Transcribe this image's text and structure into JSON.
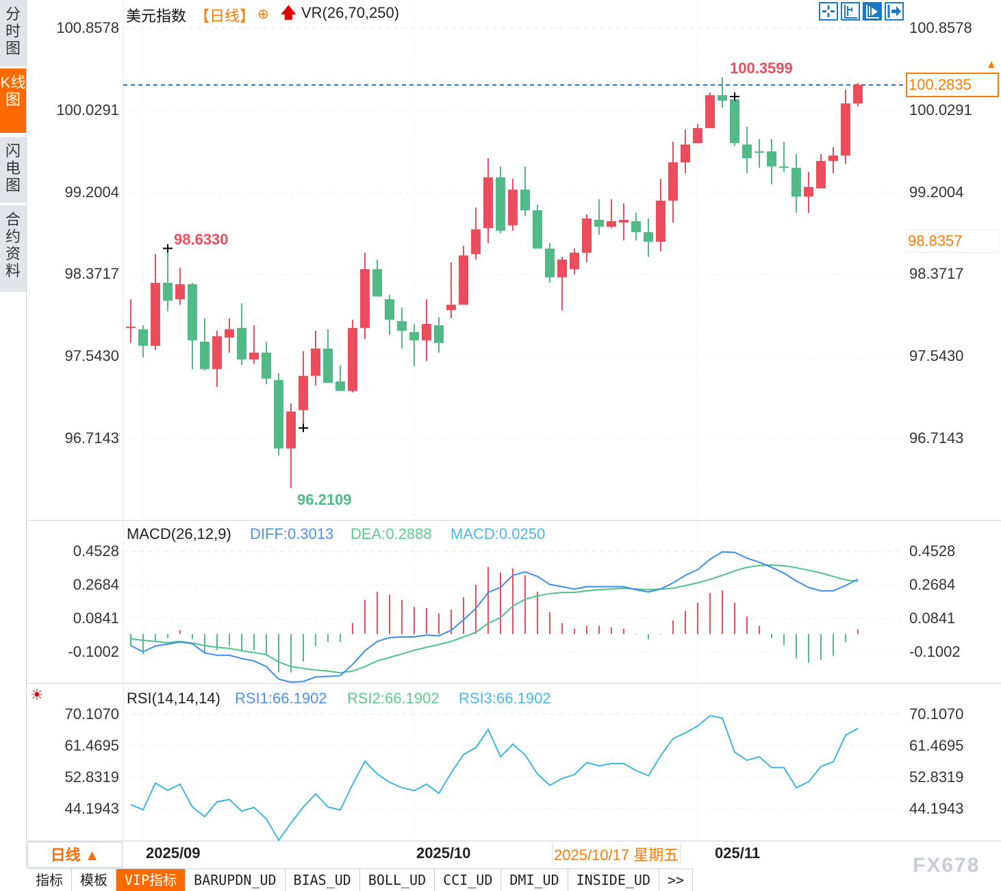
{
  "sidebar": {
    "items": [
      {
        "label": "分时图",
        "active": false
      },
      {
        "label": "K线图",
        "active": true
      },
      {
        "label": "闪电图",
        "active": false
      },
      {
        "label": "合约资料",
        "active": false
      }
    ]
  },
  "header": {
    "symbol": "美元指数",
    "period": "【日线】",
    "indicator": "VR(26,70,250)",
    "icons": [
      "crosshair-icon",
      "range-icon",
      "chart-play-icon",
      "move-right-icon"
    ]
  },
  "colors": {
    "up": "#eb4d5c",
    "down": "#52ba87",
    "accent": "#ff6a00",
    "diff": "#3a8ef0",
    "dea": "#4cc38a",
    "rsi": "#3bb4e6",
    "last_price_line": "#1a78f0"
  },
  "main": {
    "last_price": "100.2835",
    "side_label": "98.8357",
    "high_label": "100.3599",
    "low_label": "96.2109",
    "left_high_label": "98.6330"
  },
  "macd": {
    "title": "MACD(26,12,9)",
    "diff": "DIFF:0.3013",
    "dea": "DEA:0.2888",
    "macd": "MACD:0.0250"
  },
  "rsi": {
    "title": "RSI(14,14,14)",
    "rsi1": "RSI1:66.1902",
    "rsi2": "RSI2:66.1902",
    "rsi3": "RSI3:66.1902"
  },
  "xaxis": {
    "labels": [
      "2025/09",
      "2025/10",
      "025/11"
    ],
    "hover_label": "2025/10/17 星期五"
  },
  "footer": {
    "period_button": "日线 ▲",
    "tabs": [
      {
        "label": "指标",
        "active": false
      },
      {
        "label": "模板",
        "active": false
      },
      {
        "label": "VIP指标",
        "active": true
      },
      {
        "label": "BARUPDN_UD",
        "active": false
      },
      {
        "label": "BIAS_UD",
        "active": false
      },
      {
        "label": "BOLL_UD",
        "active": false
      },
      {
        "label": "CCI_UD",
        "active": false
      },
      {
        "label": "DMI_UD",
        "active": false
      },
      {
        "label": "INSIDE_UD",
        "active": false
      },
      {
        "label": ">>",
        "active": false
      }
    ],
    "watermark": "FX678"
  },
  "chart_data": [
    {
      "type": "candlestick",
      "title": "美元指数",
      "ylim": [
        96.2109,
        100.8578
      ],
      "yticks": [
        "100.8578",
        "100.0291",
        "99.2004",
        "98.3717",
        "97.5430",
        "96.7143"
      ],
      "ytick_values": [
        100.8578,
        100.0291,
        99.2004,
        98.3717,
        97.543,
        96.7143
      ],
      "xticks": [
        "2025/09",
        "2025/10",
        "025/11"
      ],
      "xtick_index": [
        2,
        24,
        47
      ],
      "grid": true,
      "ohlc": [
        [
          97.843,
          98.119,
          97.677,
          97.843
        ],
        [
          97.815,
          97.856,
          97.531,
          97.649
        ],
        [
          97.649,
          98.576,
          97.608,
          98.285
        ],
        [
          98.285,
          98.633,
          97.995,
          98.105
        ],
        [
          98.119,
          98.437,
          98.064,
          98.271
        ],
        [
          98.271,
          98.285,
          97.414,
          97.704
        ],
        [
          97.69,
          97.926,
          97.4,
          97.414
        ],
        [
          97.414,
          97.801,
          97.234,
          97.746
        ],
        [
          97.732,
          97.926,
          97.58,
          97.815
        ],
        [
          97.829,
          98.078,
          97.455,
          97.511
        ],
        [
          97.511,
          97.856,
          97.469,
          97.58
        ],
        [
          97.58,
          97.69,
          97.262,
          97.317
        ],
        [
          97.303,
          97.372,
          96.543,
          96.612
        ],
        [
          96.612,
          97.068,
          96.2109,
          96.985
        ],
        [
          96.999,
          97.594,
          96.819,
          97.345
        ],
        [
          97.345,
          97.801,
          97.248,
          97.621
        ],
        [
          97.621,
          97.815,
          97.275,
          97.275
        ],
        [
          97.289,
          97.455,
          97.193,
          97.193
        ],
        [
          97.193,
          97.912,
          97.179,
          97.829
        ],
        [
          97.829,
          98.589,
          97.718,
          98.423
        ],
        [
          98.423,
          98.52,
          98.147,
          98.147
        ],
        [
          98.119,
          98.161,
          97.76,
          97.912
        ],
        [
          97.898,
          98.036,
          97.621,
          97.801
        ],
        [
          97.787,
          97.87,
          97.442,
          97.704
        ],
        [
          97.704,
          98.119,
          97.497,
          97.87
        ],
        [
          97.856,
          97.939,
          97.58,
          97.677
        ],
        [
          98.009,
          98.493,
          97.926,
          98.064
        ],
        [
          98.064,
          98.659,
          98.064,
          98.562
        ],
        [
          98.576,
          99.046,
          98.52,
          98.825
        ],
        [
          98.838,
          99.544,
          98.686,
          99.35
        ],
        [
          99.35,
          99.461,
          98.783,
          98.811
        ],
        [
          98.866,
          99.336,
          98.811,
          99.226
        ],
        [
          99.226,
          99.461,
          98.963,
          99.018
        ],
        [
          99.018,
          99.073,
          98.631,
          98.631
        ],
        [
          98.631,
          98.686,
          98.285,
          98.341
        ],
        [
          98.341,
          98.548,
          98.009,
          98.52
        ],
        [
          98.423,
          98.631,
          98.368,
          98.589
        ],
        [
          98.589,
          98.977,
          98.493,
          98.935
        ],
        [
          98.921,
          99.129,
          98.769,
          98.852
        ],
        [
          98.852,
          99.129,
          98.838,
          98.908
        ],
        [
          98.894,
          99.087,
          98.714,
          98.921
        ],
        [
          98.908,
          98.991,
          98.714,
          98.797
        ],
        [
          98.797,
          98.935,
          98.548,
          98.7
        ],
        [
          98.7,
          99.336,
          98.603,
          99.115
        ],
        [
          99.115,
          99.71,
          98.894,
          99.502
        ],
        [
          99.502,
          99.834,
          99.392,
          99.682
        ],
        [
          99.696,
          99.889,
          99.696,
          99.848
        ],
        [
          99.848,
          100.208,
          99.848,
          100.18
        ],
        [
          100.18,
          100.3599,
          100.055,
          100.125
        ],
        [
          100.138,
          100.166,
          99.668,
          99.696
        ],
        [
          99.682,
          99.862,
          99.392,
          99.544
        ],
        [
          99.613,
          99.737,
          99.447,
          99.599
        ],
        [
          99.613,
          99.737,
          99.281,
          99.461
        ],
        [
          99.461,
          99.71,
          99.405,
          99.447
        ],
        [
          99.447,
          99.585,
          98.991,
          99.156
        ],
        [
          99.156,
          99.405,
          98.991,
          99.253
        ],
        [
          99.239,
          99.585,
          99.239,
          99.516
        ],
        [
          99.516,
          99.654,
          99.392,
          99.571
        ],
        [
          99.571,
          100.235,
          99.488,
          100.097
        ],
        [
          100.097,
          100.304,
          100.069,
          100.2835
        ]
      ],
      "high_index": 49,
      "low_index": 14,
      "left_high_index": 4
    },
    {
      "type": "line",
      "title": "MACD(26,12,9)",
      "yticks": [
        "0.4528",
        "0.2684",
        "0.0841",
        "-0.1002"
      ],
      "ytick_values": [
        0.4528,
        0.2684,
        0.0841,
        -0.1002
      ],
      "grid": true,
      "series": [
        {
          "name": "DIFF",
          "values": [
            -0.064,
            -0.098,
            -0.066,
            -0.056,
            -0.044,
            -0.054,
            -0.104,
            -0.117,
            -0.117,
            -0.135,
            -0.148,
            -0.179,
            -0.248,
            -0.265,
            -0.261,
            -0.236,
            -0.233,
            -0.229,
            -0.167,
            -0.092,
            -0.041,
            -0.02,
            -0.016,
            -0.016,
            -0.006,
            -0.01,
            0.021,
            0.078,
            0.14,
            0.228,
            0.256,
            0.322,
            0.341,
            0.316,
            0.272,
            0.26,
            0.247,
            0.26,
            0.26,
            0.26,
            0.26,
            0.243,
            0.231,
            0.247,
            0.281,
            0.322,
            0.354,
            0.41,
            0.451,
            0.448,
            0.416,
            0.394,
            0.366,
            0.335,
            0.291,
            0.256,
            0.237,
            0.237,
            0.266,
            0.3013
          ]
        },
        {
          "name": "DEA",
          "values": [
            -0.026,
            -0.035,
            -0.041,
            -0.048,
            -0.041,
            -0.05,
            -0.064,
            -0.073,
            -0.079,
            -0.092,
            -0.102,
            -0.114,
            -0.154,
            -0.179,
            -0.189,
            -0.198,
            -0.204,
            -0.213,
            -0.204,
            -0.179,
            -0.148,
            -0.129,
            -0.11,
            -0.089,
            -0.073,
            -0.058,
            -0.041,
            -0.016,
            0.009,
            0.059,
            0.09,
            0.153,
            0.191,
            0.209,
            0.222,
            0.228,
            0.228,
            0.237,
            0.243,
            0.247,
            0.251,
            0.247,
            0.243,
            0.247,
            0.251,
            0.266,
            0.281,
            0.3,
            0.322,
            0.347,
            0.366,
            0.376,
            0.379,
            0.375,
            0.364,
            0.35,
            0.335,
            0.316,
            0.297,
            0.2888
          ]
        },
        {
          "name": "MACD",
          "type": "bar",
          "values": [
            -0.066,
            -0.11,
            -0.041,
            -0.023,
            0.021,
            -0.029,
            -0.098,
            -0.089,
            -0.066,
            -0.092,
            -0.089,
            -0.117,
            -0.211,
            -0.211,
            -0.152,
            -0.066,
            -0.045,
            -0.045,
            0.059,
            0.187,
            0.232,
            0.216,
            0.187,
            0.149,
            0.142,
            0.112,
            0.134,
            0.202,
            0.27,
            0.367,
            0.337,
            0.36,
            0.322,
            0.232,
            0.119,
            0.059,
            0.029,
            0.044,
            0.044,
            0.036,
            0.029,
            -0.003,
            -0.031,
            -0.003,
            0.074,
            0.127,
            0.172,
            0.224,
            0.24,
            0.172,
            0.097,
            0.044,
            -0.023,
            -0.06,
            -0.135,
            -0.158,
            -0.143,
            -0.12,
            -0.045,
            0.025
          ]
        }
      ]
    },
    {
      "type": "line",
      "title": "RSI(14,14,14)",
      "yticks": [
        "70.1070",
        "61.4695",
        "52.8319",
        "44.1943"
      ],
      "ytick_values": [
        70.107,
        61.4695,
        52.8319,
        44.1943
      ],
      "grid": true,
      "series": [
        {
          "name": "RSI1",
          "values": [
            45.26,
            43.88,
            51.21,
            49.2,
            50.89,
            44.63,
            42.0,
            46.07,
            46.7,
            43.51,
            44.51,
            41.38,
            35.56,
            40.25,
            44.63,
            48.26,
            44.63,
            43.82,
            50.89,
            57.15,
            53.71,
            51.39,
            49.95,
            49.14,
            50.89,
            48.39,
            54.02,
            59.03,
            60.91,
            65.91,
            58.4,
            61.85,
            58.9,
            53.71,
            50.58,
            52.46,
            53.52,
            56.84,
            55.9,
            56.53,
            56.53,
            54.65,
            53.21,
            58.71,
            63.41,
            64.97,
            66.85,
            69.67,
            69.04,
            59.65,
            57.46,
            58.4,
            55.46,
            55.46,
            49.95,
            51.52,
            55.77,
            57.03,
            64.35,
            66.1902
          ]
        }
      ]
    }
  ]
}
